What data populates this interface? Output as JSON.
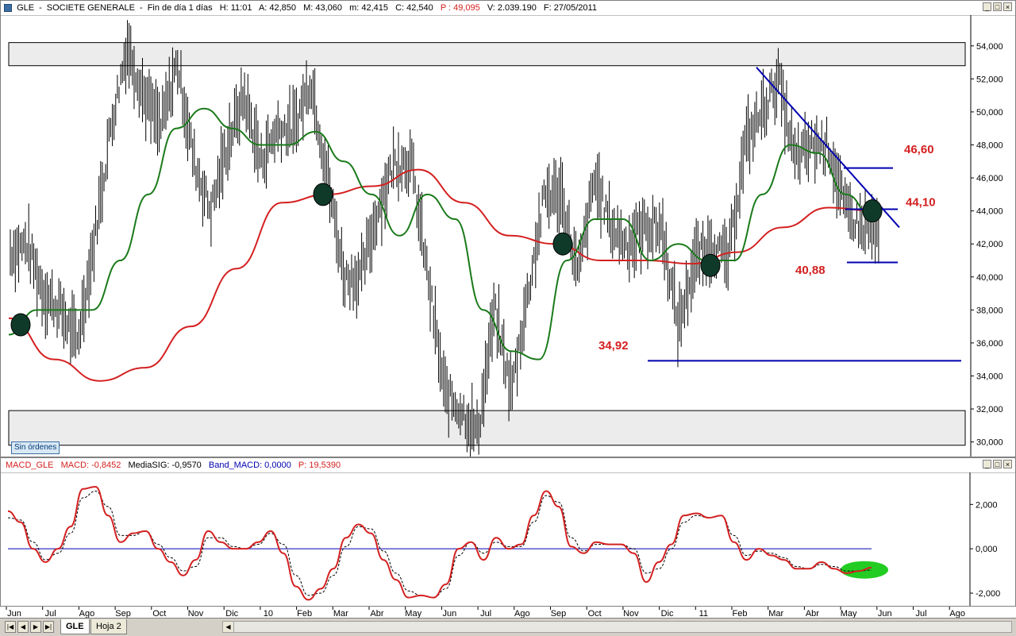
{
  "header": {
    "symbol": "GLE",
    "name": "SOCIETE GENERALE",
    "interval": "Fin de día 1 días",
    "time": "H: 11:01",
    "open": "A: 42,850",
    "high": "M: 43,060",
    "low": "m: 42,415",
    "close": "C: 42,540",
    "p": "P : 49,095",
    "volume": "V: 2.039.190",
    "date": "F: 27/05/2011"
  },
  "orders_label": "Sin órdenes",
  "macd_header": {
    "name": "MACD_GLE",
    "macd": "MACD: -0,8452",
    "signal": "MediaSIG: -0,9570",
    "band": "Band_MACD: 0,0000",
    "p": "P: 19,5390"
  },
  "tabs": [
    "GLE",
    "Hoja 2"
  ],
  "colors": {
    "price_bars": "#000000",
    "sma_fast": "#1a7a1a",
    "sma_slow": "#d42020",
    "trendlines": "#0000b0",
    "annotations": "#d42020",
    "macd": "#d42020",
    "signal": "#000000",
    "marker": "#0f3a2a",
    "highlight": "#22cc22"
  },
  "chart_data": [
    {
      "type": "line",
      "panel": "price",
      "y_axis_side": "right",
      "ylim": [
        29.5,
        55
      ],
      "y_ticks": [
        "30,000",
        "32,000",
        "34,000",
        "36,000",
        "38,000",
        "40,000",
        "42,000",
        "44,000",
        "46,000",
        "48,000",
        "50,000",
        "52,000",
        "54,000"
      ],
      "y_tick_values": [
        30,
        32,
        34,
        36,
        38,
        40,
        42,
        44,
        46,
        48,
        50,
        52,
        54
      ],
      "x_months": [
        "Jun",
        "Jul",
        "Ago",
        "Sep",
        "Oct",
        "Nov",
        "Dic",
        "10",
        "Feb",
        "Mar",
        "Abr",
        "May",
        "Jun",
        "Jul",
        "Ago",
        "Sep",
        "Oct",
        "Nov",
        "Dic",
        "11",
        "Feb",
        "Mar",
        "Abr",
        "May",
        "Jun",
        "Jul",
        "Ago"
      ],
      "x_start": "2009-06-01",
      "series": [
        {
          "kind": "price",
          "points": [
            [
              0,
              41.5
            ],
            [
              1,
              42
            ],
            [
              2,
              39
            ],
            [
              3,
              38
            ],
            [
              4,
              36
            ],
            [
              5,
              42
            ],
            [
              6,
              49
            ],
            [
              7,
              54
            ],
            [
              8,
              51
            ],
            [
              9,
              49
            ],
            [
              10,
              53
            ],
            [
              11,
              47
            ],
            [
              12,
              44
            ],
            [
              13,
              48
            ],
            [
              14,
              51
            ],
            [
              15,
              47
            ],
            [
              16,
              49
            ],
            [
              17,
              49
            ],
            [
              18,
              52
            ],
            [
              19,
              46
            ],
            [
              20,
              40
            ],
            [
              21,
              40
            ],
            [
              22,
              44
            ],
            [
              23,
              47
            ],
            [
              24,
              47
            ],
            [
              25,
              40
            ],
            [
              26,
              33
            ],
            [
              27,
              32
            ],
            [
              28,
              30.5
            ],
            [
              29,
              38
            ],
            [
              30,
              33
            ],
            [
              31,
              39
            ],
            [
              32,
              45
            ],
            [
              33,
              45
            ],
            [
              34,
              40
            ],
            [
              35,
              46
            ],
            [
              36,
              43
            ],
            [
              37,
              42
            ],
            [
              38,
              43
            ],
            [
              39,
              43
            ],
            [
              40,
              37
            ],
            [
              41,
              41
            ],
            [
              42,
              42
            ],
            [
              43,
              41
            ],
            [
              44,
              48
            ],
            [
              45,
              50
            ],
            [
              46,
              52
            ],
            [
              47,
              47
            ],
            [
              48,
              48
            ],
            [
              49,
              48
            ],
            [
              50,
              44
            ],
            [
              51,
              43
            ],
            [
              52,
              42.5
            ]
          ]
        },
        {
          "kind": "sma_fast",
          "points": [
            [
              0,
              36.5
            ],
            [
              1,
              38
            ],
            [
              2,
              38
            ],
            [
              3,
              38
            ],
            [
              4,
              41
            ],
            [
              5,
              45
            ],
            [
              6,
              49
            ],
            [
              7,
              50.2
            ],
            [
              8,
              49
            ],
            [
              9,
              48
            ],
            [
              10,
              48
            ],
            [
              11,
              48.8
            ],
            [
              12,
              47
            ],
            [
              13,
              45
            ],
            [
              14,
              42.5
            ],
            [
              15,
              45
            ],
            [
              16,
              43.5
            ],
            [
              17,
              38
            ],
            [
              18,
              35.5
            ],
            [
              19,
              35
            ],
            [
              20,
              41
            ],
            [
              21,
              43.5
            ],
            [
              22,
              43.5
            ],
            [
              23,
              41
            ],
            [
              24,
              42
            ],
            [
              25,
              41
            ],
            [
              26,
              41
            ],
            [
              27,
              45
            ],
            [
              28,
              48
            ],
            [
              29,
              47.5
            ],
            [
              30,
              45
            ],
            [
              31,
              43.5
            ]
          ]
        },
        {
          "kind": "sma_slow",
          "points": [
            [
              0,
              37.5
            ],
            [
              1,
              35
            ],
            [
              2,
              33.7
            ],
            [
              3,
              34.5
            ],
            [
              4,
              37
            ],
            [
              5,
              40.5
            ],
            [
              6,
              44.5
            ],
            [
              7,
              45
            ],
            [
              8,
              45.5
            ],
            [
              9,
              46.5
            ],
            [
              10,
              44.5
            ],
            [
              11,
              42.5
            ],
            [
              12,
              42
            ],
            [
              13,
              41
            ],
            [
              14,
              41
            ],
            [
              15,
              40.8
            ],
            [
              16,
              41.5
            ],
            [
              17,
              43
            ],
            [
              18,
              44.2
            ],
            [
              19,
              44
            ]
          ]
        },
        {
          "kind": "trendline_descending",
          "points": [
            [
              0,
              52.7
            ],
            [
              1,
              43
            ]
          ]
        },
        {
          "kind": "support",
          "value": 34.92
        },
        {
          "kind": "resistance",
          "value": 46.6
        },
        {
          "kind": "level",
          "value": 44.1
        },
        {
          "kind": "level",
          "value": 40.88
        }
      ],
      "annotations": [
        "46,60",
        "44,10",
        "40,88",
        "34,92"
      ],
      "zones": [
        [
          52.8,
          54.2
        ],
        [
          29.8,
          31.9
        ]
      ]
    },
    {
      "type": "line",
      "panel": "macd",
      "y_axis_side": "right",
      "ylim": [
        -2.5,
        3.3
      ],
      "y_ticks": [
        "-2,000",
        "0,000",
        "2,000"
      ],
      "y_tick_values": [
        -2,
        0,
        2
      ],
      "series": [
        {
          "name": "MACD",
          "points": [
            [
              0,
              1.7
            ],
            [
              1,
              1.2
            ],
            [
              2,
              0
            ],
            [
              3,
              -0.6
            ],
            [
              4,
              0
            ],
            [
              5,
              1
            ],
            [
              6,
              2.7
            ],
            [
              7,
              2.8
            ],
            [
              8,
              1.5
            ],
            [
              9,
              0.3
            ],
            [
              10,
              0.7
            ],
            [
              11,
              0.8
            ],
            [
              12,
              0
            ],
            [
              13,
              -0.6
            ],
            [
              14,
              -1.2
            ],
            [
              15,
              -0.5
            ],
            [
              16,
              0.8
            ],
            [
              17,
              0.3
            ],
            [
              18,
              0
            ],
            [
              19,
              0
            ],
            [
              20,
              0.3
            ],
            [
              21,
              0.8
            ],
            [
              22,
              -0.2
            ],
            [
              23,
              -1.7
            ],
            [
              24,
              -2.3
            ],
            [
              25,
              -1.8
            ],
            [
              26,
              -0.9
            ],
            [
              27,
              0.5
            ],
            [
              28,
              1.1
            ],
            [
              29,
              0.7
            ],
            [
              30,
              -0.5
            ],
            [
              31,
              -1.4
            ],
            [
              32,
              -2.2
            ],
            [
              33,
              -2.1
            ],
            [
              34,
              -2.2
            ],
            [
              35,
              -1.6
            ],
            [
              36,
              0
            ],
            [
              37,
              0.3
            ],
            [
              38,
              -0.5
            ],
            [
              39,
              0.5
            ],
            [
              40,
              0
            ],
            [
              41,
              0.2
            ],
            [
              42,
              1.5
            ],
            [
              43,
              2.6
            ],
            [
              44,
              1.9
            ],
            [
              45,
              0.1
            ],
            [
              46,
              -0.2
            ],
            [
              47,
              0.3
            ],
            [
              48,
              0.2
            ],
            [
              49,
              0.2
            ],
            [
              50,
              -0.2
            ],
            [
              51,
              -1.5
            ],
            [
              52,
              -0.6
            ],
            [
              53,
              0.2
            ],
            [
              54,
              1.5
            ],
            [
              55,
              1.6
            ],
            [
              56,
              1.4
            ],
            [
              57,
              1.5
            ],
            [
              58,
              0.3
            ],
            [
              59,
              -0.5
            ],
            [
              60,
              0
            ],
            [
              61,
              -0.3
            ],
            [
              62,
              -0.5
            ],
            [
              63,
              -0.9
            ],
            [
              64,
              -0.9
            ],
            [
              65,
              -0.6
            ],
            [
              66,
              -0.9
            ],
            [
              67,
              -1.1
            ],
            [
              68,
              -1
            ],
            [
              69,
              -0.85
            ]
          ]
        },
        {
          "name": "MediaSIG",
          "points": [
            [
              0,
              1.4
            ],
            [
              1,
              1.3
            ],
            [
              2,
              0.3
            ],
            [
              3,
              -0.5
            ],
            [
              4,
              -0.2
            ],
            [
              5,
              0.7
            ],
            [
              6,
              2.3
            ],
            [
              7,
              2.6
            ],
            [
              8,
              1.9
            ],
            [
              9,
              0.6
            ],
            [
              10,
              0.6
            ],
            [
              11,
              0.8
            ],
            [
              12,
              0.2
            ],
            [
              13,
              -0.4
            ],
            [
              14,
              -1
            ],
            [
              15,
              -0.8
            ],
            [
              16,
              0.5
            ],
            [
              17,
              0.5
            ],
            [
              18,
              0.1
            ],
            [
              19,
              0
            ],
            [
              20,
              0.2
            ],
            [
              21,
              0.7
            ],
            [
              22,
              0.2
            ],
            [
              23,
              -1.2
            ],
            [
              24,
              -2.1
            ],
            [
              25,
              -2
            ],
            [
              26,
              -1.2
            ],
            [
              27,
              0.1
            ],
            [
              28,
              1
            ],
            [
              29,
              0.9
            ],
            [
              30,
              -0.1
            ],
            [
              31,
              -1.1
            ],
            [
              32,
              -1.9
            ],
            [
              33,
              -2.1
            ],
            [
              34,
              -2.2
            ],
            [
              35,
              -1.8
            ],
            [
              36,
              -0.3
            ],
            [
              37,
              0.3
            ],
            [
              38,
              -0.2
            ],
            [
              39,
              0.3
            ],
            [
              40,
              0.1
            ],
            [
              41,
              0.1
            ],
            [
              42,
              1.2
            ],
            [
              43,
              2.4
            ],
            [
              44,
              2.1
            ],
            [
              45,
              0.5
            ],
            [
              46,
              -0.1
            ],
            [
              47,
              0.2
            ],
            [
              48,
              0.2
            ],
            [
              49,
              0.2
            ],
            [
              50,
              0
            ],
            [
              51,
              -1.1
            ],
            [
              52,
              -0.9
            ],
            [
              53,
              0
            ],
            [
              54,
              1.2
            ],
            [
              55,
              1.5
            ],
            [
              56,
              1.4
            ],
            [
              57,
              1.5
            ],
            [
              58,
              0.6
            ],
            [
              59,
              -0.3
            ],
            [
              60,
              -0.1
            ],
            [
              61,
              -0.2
            ],
            [
              62,
              -0.4
            ],
            [
              63,
              -0.8
            ],
            [
              64,
              -0.9
            ],
            [
              65,
              -0.7
            ],
            [
              66,
              -0.8
            ],
            [
              67,
              -1
            ],
            [
              68,
              -1
            ],
            [
              69,
              -0.96
            ]
          ]
        },
        {
          "name": "Band_MACD",
          "value": 0
        }
      ]
    }
  ]
}
